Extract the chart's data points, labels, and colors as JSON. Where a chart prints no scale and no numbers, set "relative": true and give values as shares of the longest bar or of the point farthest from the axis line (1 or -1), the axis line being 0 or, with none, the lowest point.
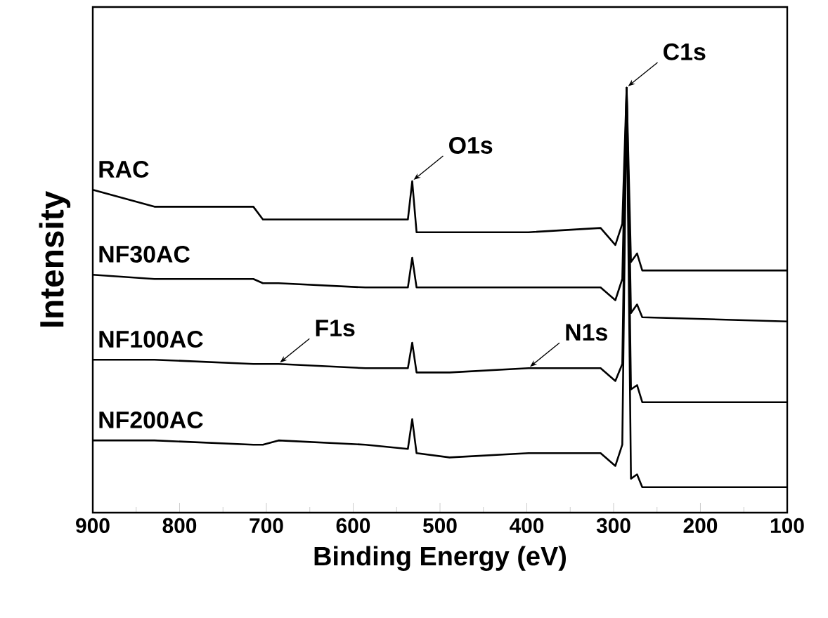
{
  "chart_data": {
    "type": "line",
    "xlabel": "Binding Energy (eV)",
    "ylabel": "Intensity",
    "relative": true,
    "tick_labels": "x",
    "line_style": "solid",
    "x": [
      900,
      829,
      715,
      704,
      686,
      586,
      537,
      532,
      527,
      489,
      398,
      315,
      298,
      290,
      285,
      280,
      273,
      267,
      100
    ],
    "series": [
      {
        "name": "RAC",
        "color": "#000000",
        "values": [
          0.76,
          0.72,
          0.72,
          0.69,
          0.69,
          0.69,
          0.69,
          0.78,
          0.66,
          0.66,
          0.66,
          0.67,
          0.63,
          0.68,
          1,
          0.59,
          0.61,
          0.57,
          0.57
        ]
      },
      {
        "name": "NF30AC",
        "color": "#000000",
        "values": [
          0.56,
          0.55,
          0.55,
          0.54,
          0.54,
          0.53,
          0.53,
          0.6,
          0.53,
          0.53,
          0.53,
          0.53,
          0.5,
          0.55,
          1,
          0.47,
          0.49,
          0.46,
          0.45
        ]
      },
      {
        "name": "NF100AC",
        "color": "#000000",
        "values": [
          0.36,
          0.36,
          0.35,
          0.35,
          0.35,
          0.34,
          0.34,
          0.4,
          0.33,
          0.33,
          0.34,
          0.34,
          0.31,
          0.35,
          1,
          0.29,
          0.3,
          0.26,
          0.26
        ]
      },
      {
        "name": "NF200AC",
        "color": "#000000",
        "values": [
          0.17,
          0.17,
          0.16,
          0.16,
          0.17,
          0.16,
          0.15,
          0.22,
          0.14,
          0.13,
          0.14,
          0.14,
          0.11,
          0.16,
          1,
          0.08,
          0.09,
          0.06,
          0.06
        ]
      }
    ],
    "xlim": [
      900,
      100
    ],
    "xticks": [
      900,
      800,
      700,
      600,
      500,
      400,
      300,
      200,
      100
    ],
    "annotations": [
      {
        "text": "C1s",
        "x": 285,
        "y": 1
      },
      {
        "text": "O1s",
        "x": 532,
        "y": 0.78
      },
      {
        "text": "F1s",
        "x": 686,
        "y": 0.35
      },
      {
        "text": "N1s",
        "x": 398,
        "y": 0.34
      }
    ]
  }
}
